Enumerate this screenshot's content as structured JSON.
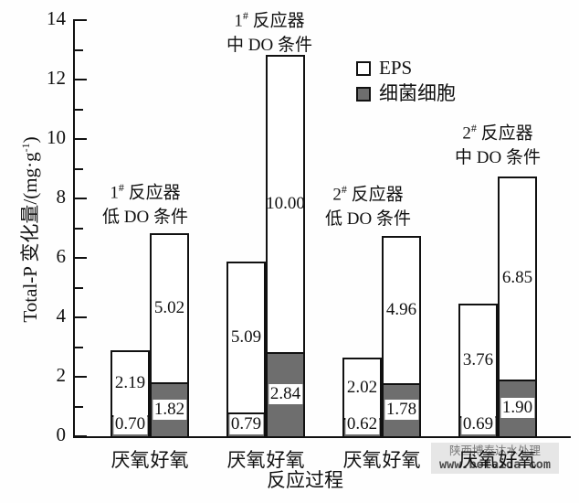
{
  "figure": {
    "y_axis": {
      "title_main": "Total-P 变化量/(mg·g",
      "title_sup": "-1",
      "title_end": ")",
      "ticks_major": [
        0,
        2,
        4,
        6,
        8,
        10,
        12,
        14
      ],
      "max": 14
    },
    "x_axis": {
      "title": "反应过程"
    },
    "legend": [
      {
        "label": "EPS",
        "fill": "#ffffff"
      },
      {
        "label": "细菌细胞",
        "fill": "#6e6e6e"
      }
    ],
    "watermark": {
      "line1": "陕西博泰达水处理",
      "line2": "www.botaida.com"
    }
  },
  "chart_data": {
    "type": "bar",
    "stacked": true,
    "title": "",
    "xlabel": "反应过程",
    "ylabel": "Total-P 变化量/(mg·g-1)",
    "ylim": [
      0,
      14
    ],
    "yticks_major": [
      0,
      2,
      4,
      6,
      8,
      10,
      12,
      14
    ],
    "grid": false,
    "legend_position": "upper-center-right",
    "bar_colors": {
      "EPS": "#ffffff",
      "细菌细胞": "#6e6e6e"
    },
    "stack_order_bottom_to_top": [
      "细菌细胞",
      "EPS"
    ],
    "groups": [
      {
        "annotation_line1": "1# 反应器",
        "annotation_line2": "低 DO 条件",
        "bars": [
          {
            "category": "厌氧",
            "细菌细胞": "0.70",
            "EPS": "2.19"
          },
          {
            "category": "好氧",
            "细菌细胞": "1.82",
            "EPS": "5.02"
          }
        ]
      },
      {
        "annotation_line1": "1# 反应器",
        "annotation_line2": "中 DO 条件",
        "bars": [
          {
            "category": "厌氧",
            "细菌细胞": "0.79",
            "EPS": "5.09"
          },
          {
            "category": "好氧",
            "细菌细胞": "2.84",
            "EPS": "10.00"
          }
        ]
      },
      {
        "annotation_line1": "2# 反应器",
        "annotation_line2": "低 DO 条件",
        "bars": [
          {
            "category": "厌氧",
            "细菌细胞": "0.62",
            "EPS": "2.02"
          },
          {
            "category": "好氧",
            "细菌细胞": "1.78",
            "EPS": "4.96"
          }
        ]
      },
      {
        "annotation_line1": "2# 反应器",
        "annotation_line2": "中 DO 条件",
        "bars": [
          {
            "category": "厌氧",
            "细菌细胞": "0.69",
            "EPS": "3.76"
          },
          {
            "category": "好氧",
            "细菌细胞": "1.90",
            "EPS": "6.85"
          }
        ]
      }
    ]
  }
}
